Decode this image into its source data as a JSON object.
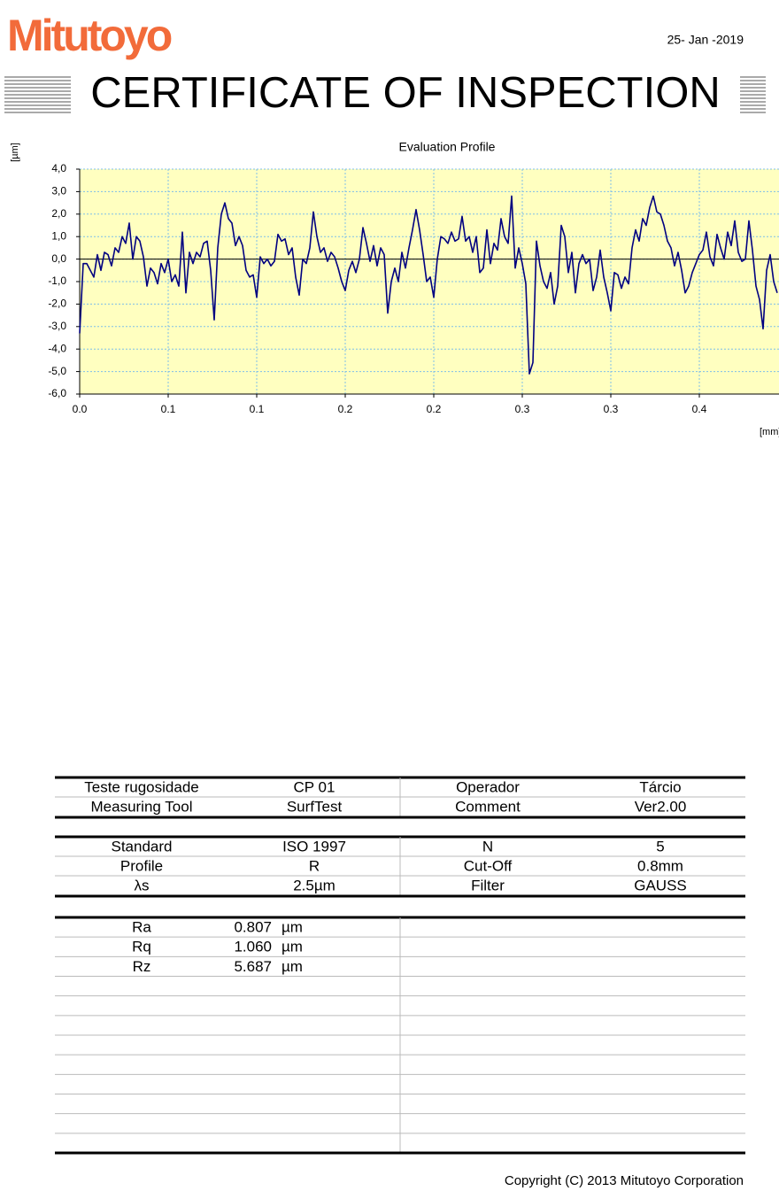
{
  "header": {
    "logo": "Mitutoyo",
    "date": "25- Jan -2019",
    "title": "CERTIFICATE OF INSPECTION"
  },
  "chart_data": {
    "type": "line",
    "title": "Evaluation Profile",
    "y_label": "[µm]",
    "x_label": "[mm]",
    "color": "#000080",
    "plot_color": "#ffffc0",
    "grid": true,
    "xlim": [
      0,
      0.44
    ],
    "ylim": [
      -6,
      4
    ],
    "xticks": [
      {
        "value": 0,
        "label": "0.0"
      },
      {
        "value": 0.055,
        "label": "0.1"
      },
      {
        "value": 0.11,
        "label": "0.1"
      },
      {
        "value": 0.165,
        "label": "0.2"
      },
      {
        "value": 0.22,
        "label": "0.2"
      },
      {
        "value": 0.275,
        "label": "0.3"
      },
      {
        "value": 0.33,
        "label": "0.3"
      },
      {
        "value": 0.385,
        "label": "0.4"
      }
    ],
    "yticks": [
      {
        "value": 4,
        "label": "4,0"
      },
      {
        "value": 3,
        "label": "3,0"
      },
      {
        "value": 2,
        "label": "2,0"
      },
      {
        "value": 1,
        "label": "1,0"
      },
      {
        "value": 0,
        "label": "0,0"
      },
      {
        "value": -1,
        "label": "-1,0"
      },
      {
        "value": -2,
        "label": "-2,0"
      },
      {
        "value": -3,
        "label": "-3,0"
      },
      {
        "value": -4,
        "label": "-4,0"
      },
      {
        "value": -5,
        "label": "-5,0"
      },
      {
        "value": -6,
        "label": "-6,0"
      }
    ],
    "x": [
      0,
      0.0022,
      0.0044,
      0.0066,
      0.0088,
      0.011,
      0.0132,
      0.0154,
      0.0176,
      0.0198,
      0.022,
      0.0242,
      0.0264,
      0.0286,
      0.0308,
      0.033,
      0.0352,
      0.0374,
      0.0396,
      0.0418,
      0.044,
      0.0462,
      0.0484,
      0.0506,
      0.0528,
      0.055,
      0.0572,
      0.0594,
      0.0616,
      0.0638,
      0.066,
      0.0682,
      0.0704,
      0.0726,
      0.0748,
      0.077,
      0.0792,
      0.0814,
      0.0836,
      0.0858,
      0.088,
      0.0902,
      0.0924,
      0.0946,
      0.0968,
      0.099,
      0.1012,
      0.1034,
      0.1056,
      0.1078,
      0.11,
      0.1122,
      0.1144,
      0.1166,
      0.1188,
      0.121,
      0.1232,
      0.1254,
      0.1276,
      0.1298,
      0.132,
      0.1342,
      0.1364,
      0.1386,
      0.1408,
      0.143,
      0.1452,
      0.1474,
      0.1496,
      0.1518,
      0.154,
      0.1562,
      0.1584,
      0.1606,
      0.1628,
      0.165,
      0.1672,
      0.1694,
      0.1716,
      0.1738,
      0.176,
      0.1782,
      0.1804,
      0.1826,
      0.1848,
      0.187,
      0.1892,
      0.1914,
      0.1936,
      0.1958,
      0.198,
      0.2002,
      0.2024,
      0.2046,
      0.2068,
      0.209,
      0.2112,
      0.2134,
      0.2156,
      0.2178,
      0.22,
      0.2222,
      0.2244,
      0.2266,
      0.2288,
      0.231,
      0.2332,
      0.2354,
      0.2376,
      0.2398,
      0.242,
      0.2442,
      0.2464,
      0.2486,
      0.2508,
      0.253,
      0.2552,
      0.2574,
      0.2596,
      0.2618,
      0.264,
      0.2662,
      0.2684,
      0.2706,
      0.2728,
      0.275,
      0.2772,
      0.2794,
      0.2816,
      0.2838,
      0.286,
      0.2882,
      0.2904,
      0.2926,
      0.2948,
      0.297,
      0.2992,
      0.3014,
      0.3036,
      0.3058,
      0.308,
      0.3102,
      0.3124,
      0.3146,
      0.3168,
      0.319,
      0.3212,
      0.3234,
      0.3256,
      0.3278,
      0.33,
      0.3322,
      0.3344,
      0.3366,
      0.3388,
      0.341,
      0.3432,
      0.3454,
      0.3476,
      0.3498,
      0.352,
      0.3542,
      0.3564,
      0.3586,
      0.3608,
      0.363,
      0.3652,
      0.3674,
      0.3696,
      0.3718,
      0.374,
      0.3762,
      0.3784,
      0.3806,
      0.3828,
      0.385,
      0.3872,
      0.3894,
      0.3916,
      0.3938,
      0.396,
      0.3982,
      0.4004,
      0.4026,
      0.4048,
      0.407,
      0.4092,
      0.4114,
      0.4136,
      0.4158,
      0.418,
      0.4202,
      0.4224,
      0.4246,
      0.4268,
      0.429,
      0.4312,
      0.4334
    ],
    "values": [
      -3.3,
      -0.2,
      -0.2,
      -0.5,
      -0.8,
      0.2,
      -0.5,
      0.3,
      0.2,
      -0.3,
      0.5,
      0.3,
      1.0,
      0.7,
      1.6,
      0.0,
      1.0,
      0.8,
      0.1,
      -1.2,
      -0.4,
      -0.6,
      -1.1,
      -0.2,
      -0.6,
      0.0,
      -1.0,
      -0.7,
      -1.2,
      1.2,
      -1.5,
      0.3,
      -0.2,
      0.3,
      0.1,
      0.7,
      0.8,
      -0.5,
      -2.7,
      0.5,
      2.0,
      2.5,
      1.8,
      1.6,
      0.6,
      1.0,
      0.6,
      -0.5,
      -0.8,
      -0.7,
      -1.7,
      0.1,
      -0.2,
      0.0,
      -0.3,
      -0.1,
      1.1,
      0.8,
      0.9,
      0.2,
      0.5,
      -0.8,
      -1.6,
      0.0,
      -0.2,
      0.5,
      2.1,
      1.0,
      0.3,
      0.5,
      -0.1,
      0.3,
      0.1,
      -0.4,
      -1.0,
      -1.4,
      -0.5,
      -0.1,
      -0.6,
      0.0,
      1.4,
      0.7,
      -0.1,
      0.6,
      -0.3,
      0.5,
      0.2,
      -2.4,
      -1.0,
      -0.4,
      -1.0,
      0.3,
      -0.4,
      0.5,
      1.3,
      2.2,
      1.3,
      0.2,
      -1.0,
      -0.8,
      -1.7,
      0.0,
      1.0,
      0.9,
      0.7,
      1.2,
      0.8,
      0.9,
      1.9,
      0.8,
      1.0,
      0.3,
      1.0,
      -0.6,
      -0.4,
      1.3,
      -0.2,
      0.7,
      0.4,
      1.8,
      1.0,
      0.7,
      2.8,
      -0.4,
      0.5,
      -0.2,
      -1.1,
      -5.1,
      -4.6,
      0.8,
      -0.3,
      -1.0,
      -1.3,
      -0.6,
      -2.0,
      -1.2,
      1.5,
      1.0,
      -0.6,
      0.3,
      -1.5,
      -0.2,
      0.2,
      -0.2,
      0.0,
      -1.4,
      -0.8,
      0.4,
      -0.8,
      -1.5,
      -2.3,
      -0.6,
      -0.7,
      -1.3,
      -0.8,
      -1.1,
      0.5,
      1.3,
      0.8,
      1.8,
      1.5,
      2.3,
      2.8,
      2.1,
      2.0,
      1.5,
      0.8,
      0.5,
      -0.3,
      0.3,
      -0.5,
      -1.5,
      -1.2,
      -0.6,
      -0.2,
      0.2,
      0.4,
      1.2,
      0.1,
      -0.3,
      1.1,
      0.5,
      0.0,
      1.2,
      0.6,
      1.7,
      0.3,
      -0.1,
      0.0,
      1.7,
      0.4,
      -1.2,
      -1.8,
      -3.1,
      -0.5,
      0.2,
      -1.0,
      -1.5
    ]
  },
  "info_table": {
    "sections": [
      [
        [
          "Teste rugosidade",
          "CP 01",
          "Operador",
          "Tárcio"
        ],
        [
          "Measuring Tool",
          "SurfTest",
          "Comment",
          "Ver2.00"
        ]
      ],
      [
        [
          "Standard",
          "ISO 1997",
          "N",
          "5"
        ],
        [
          "Profile",
          "R",
          "Cut-Off",
          "0.8mm"
        ],
        [
          "λs",
          "2.5µm",
          "Filter",
          "GAUSS"
        ]
      ]
    ]
  },
  "results": {
    "rows": [
      [
        "Ra",
        "0.807",
        "µm"
      ],
      [
        "Rq",
        "1.060",
        "µm"
      ],
      [
        "Rz",
        "5.687",
        "µm"
      ]
    ]
  },
  "footer": {
    "copyright": "Copyright (C) 2013 Mitutoyo Corporation"
  }
}
